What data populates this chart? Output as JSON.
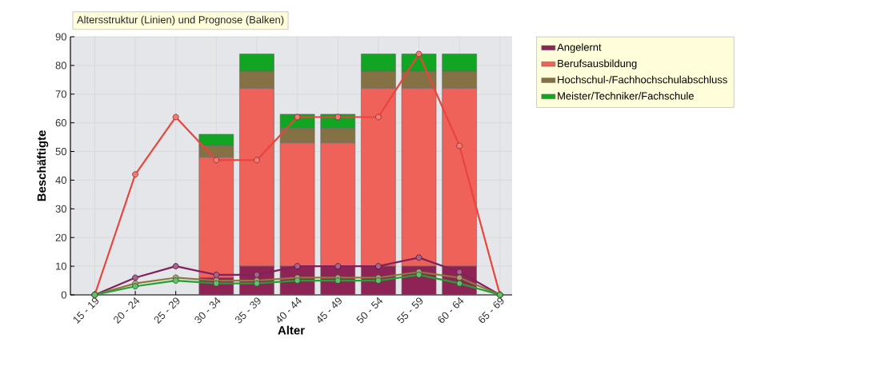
{
  "chart_data": {
    "type": "bar",
    "title": "Altersstruktur (Linien) und Prognose (Balken)",
    "xlabel": "Alter",
    "ylabel": "Beschäftigte",
    "categories": [
      "15 - 19",
      "20 - 24",
      "25 - 29",
      "30 - 34",
      "35 - 39",
      "40 - 44",
      "45 - 49",
      "50 - 54",
      "55 - 59",
      "60 - 64",
      "65 - 69"
    ],
    "stacked": true,
    "grid": true,
    "legend": "right",
    "marker": "circle",
    "line_style": "solid",
    "ylim": [
      0,
      90
    ],
    "yticks": [
      0,
      10,
      20,
      30,
      40,
      50,
      60,
      70,
      80,
      90
    ],
    "series": [
      {
        "name": "Angelernt",
        "color": "#8e2456",
        "values": [
          null,
          null,
          null,
          6,
          10,
          10,
          10,
          10,
          10,
          10,
          null
        ]
      },
      {
        "name": "Berufsausbildung",
        "color": "#ee625a",
        "values": [
          null,
          null,
          null,
          42,
          62,
          43,
          43,
          62,
          62,
          62,
          null
        ]
      },
      {
        "name": "Hochschul-/Fachhochschulabschluss",
        "color": "#857244",
        "values": [
          null,
          null,
          null,
          4,
          6,
          5,
          5,
          6,
          6,
          6,
          null
        ]
      },
      {
        "name": "Meister/Techniker/Fachschule",
        "color": "#12a524",
        "values": [
          null,
          null,
          null,
          4,
          6,
          5,
          5,
          6,
          6,
          6,
          null
        ]
      },
      {
        "type": "line",
        "color": "#e8453c",
        "values": [
          0,
          42,
          62,
          47,
          47,
          62,
          62,
          62,
          84,
          52,
          0
        ]
      },
      {
        "type": "line",
        "color": "#82205e",
        "values": [
          0,
          6,
          10,
          7,
          7,
          10,
          10,
          10,
          13,
          8,
          0
        ]
      },
      {
        "type": "line",
        "color": "#8a7a3c",
        "values": [
          0,
          4,
          6,
          5,
          5,
          6,
          6,
          6,
          8,
          6,
          0
        ]
      },
      {
        "type": "line",
        "color": "#22a032",
        "values": [
          0,
          3,
          5,
          4,
          4,
          5,
          5,
          5,
          7,
          4,
          0
        ]
      }
    ]
  }
}
